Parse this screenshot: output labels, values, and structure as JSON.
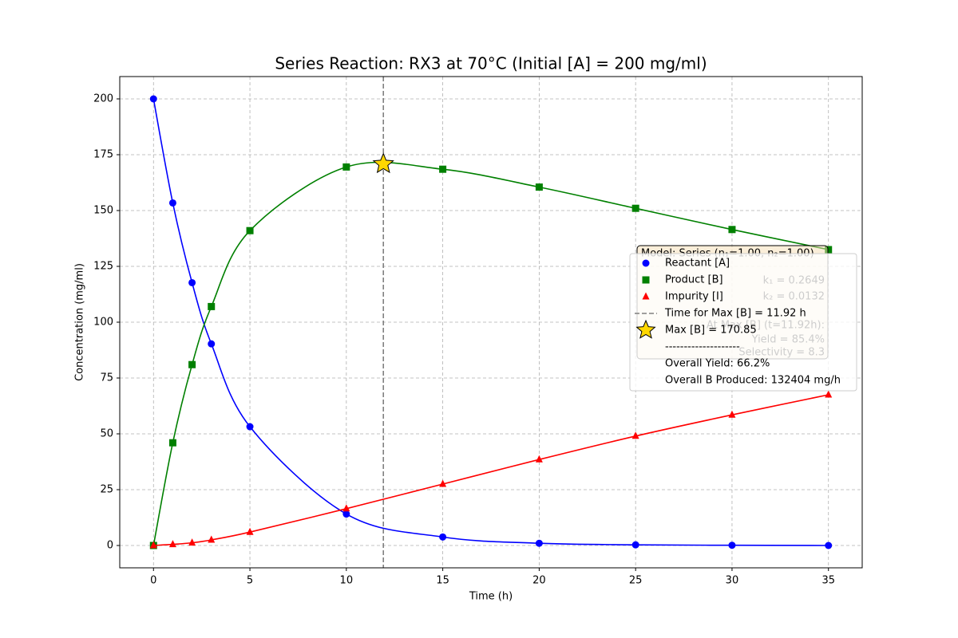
{
  "chart_data": {
    "type": "line",
    "title": "Series Reaction: RX3 at 70°C (Initial [A] = 200 mg/ml)",
    "x_label": "Time (h)",
    "y_label": "Concentration (mg/ml)",
    "x": [
      0,
      1,
      2,
      3,
      5,
      10,
      15,
      20,
      25,
      30,
      35
    ],
    "series": [
      {
        "name": "Reactant [A]",
        "color": "#0000ff",
        "marker": "circle",
        "values": [
          200,
          153.4,
          117.7,
          90.3,
          53.2,
          14.1,
          3.8,
          1.0,
          0.3,
          0.1,
          0.0
        ]
      },
      {
        "name": "Product [B]",
        "color": "#008000",
        "marker": "square",
        "values": [
          0,
          46,
          81,
          107,
          141,
          169.5,
          168.5,
          160.5,
          151,
          141.5,
          132.5
        ]
      },
      {
        "name": "Impurity [I]",
        "color": "#ff0000",
        "marker": "triangle",
        "values": [
          0,
          0.5,
          1.2,
          2.5,
          6,
          16.5,
          27.5,
          38.5,
          49,
          58.5,
          67.5
        ]
      }
    ],
    "vline": {
      "x": 11.92,
      "label": "Time for Max [B] = 11.92 h",
      "color": "#808080"
    },
    "max_point": {
      "x": 11.92,
      "y": 170.85,
      "label": "Max [B] = 170.85",
      "color": "#ffd700"
    },
    "legend_extra": [
      "--------------------",
      "Overall Yield: 66.2%",
      "Overall B Produced: 132404 mg/h"
    ],
    "annotation": [
      "Model: Series (n₁=1.00, n₂=1.00)",
      "k₁ = 0.2649",
      "k₂ = 0.0132",
      "At Max [B] (t=11.92h):",
      "Yield = 85.4%",
      "Selectivity = 8.3"
    ],
    "xlim": [
      -1.75,
      36.75
    ],
    "ylim": [
      -10,
      210
    ],
    "xticks": [
      0,
      5,
      10,
      15,
      20,
      25,
      30,
      35
    ],
    "yticks": [
      0,
      25,
      50,
      75,
      100,
      125,
      150,
      175,
      200
    ],
    "grid": true,
    "legend_position": "center right"
  }
}
